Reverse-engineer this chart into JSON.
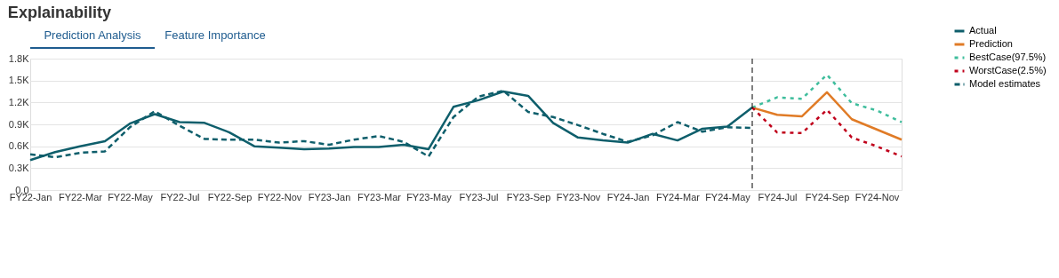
{
  "chart_data": {
    "type": "line",
    "title": "Explainability",
    "annotations": [
      "Prediction Analysis",
      "Feature Importance"
    ],
    "categories": [
      "FY22-Jan",
      null,
      "FY22-Mar",
      null,
      "FY22-May",
      null,
      "FY22-Jul",
      null,
      "FY22-Sep",
      null,
      "FY22-Nov",
      null,
      "FY23-Jan",
      null,
      "FY23-Mar",
      null,
      "FY23-May",
      null,
      "FY23-Jul",
      null,
      "FY23-Sep",
      null,
      "FY23-Nov",
      null,
      "FY24-Jan",
      null,
      "FY24-Mar",
      null,
      "FY24-May",
      null,
      "FY24-Jul",
      null,
      "FY24-Sep",
      null,
      "FY24-Nov",
      null
    ],
    "series": [
      {
        "name": "Actual",
        "color": "#0e5e6b",
        "line_style": "solid",
        "values": [
          410,
          520,
          600,
          670,
          910,
          1040,
          930,
          920,
          790,
          600,
          580,
          560,
          570,
          590,
          590,
          620,
          560,
          1140,
          1230,
          1350,
          1290,
          920,
          720,
          680,
          650,
          770,
          680,
          840,
          870,
          1130,
          null,
          null,
          null,
          null,
          null,
          null
        ]
      },
      {
        "name": "Prediction",
        "color": "#e07b26",
        "line_style": "solid",
        "values": [
          null,
          null,
          null,
          null,
          null,
          null,
          null,
          null,
          null,
          null,
          null,
          null,
          null,
          null,
          null,
          null,
          null,
          null,
          null,
          null,
          null,
          null,
          null,
          null,
          null,
          null,
          null,
          null,
          null,
          1130,
          1030,
          1010,
          1340,
          970,
          830,
          690
        ]
      },
      {
        "name": "BestCase(97.5%)",
        "color": "#3ebd9c",
        "line_style": "dotted",
        "values": [
          null,
          null,
          null,
          null,
          null,
          null,
          null,
          null,
          null,
          null,
          null,
          null,
          null,
          null,
          null,
          null,
          null,
          null,
          null,
          null,
          null,
          null,
          null,
          null,
          null,
          null,
          null,
          null,
          null,
          1130,
          1270,
          1250,
          1580,
          1190,
          1090,
          930
        ]
      },
      {
        "name": "WorstCase(2.5%)",
        "color": "#c0001b",
        "line_style": "dotted",
        "values": [
          null,
          null,
          null,
          null,
          null,
          null,
          null,
          null,
          null,
          null,
          null,
          null,
          null,
          null,
          null,
          null,
          null,
          null,
          null,
          null,
          null,
          null,
          null,
          null,
          null,
          null,
          null,
          null,
          null,
          1130,
          790,
          780,
          1100,
          720,
          600,
          460
        ]
      },
      {
        "name": "Model estimates",
        "color": "#0e5e6b",
        "line_style": "dashed",
        "values": [
          490,
          450,
          510,
          530,
          860,
          1080,
          880,
          700,
          690,
          690,
          650,
          670,
          620,
          690,
          740,
          660,
          460,
          1000,
          1280,
          1360,
          1070,
          1000,
          890,
          770,
          660,
          750,
          930,
          800,
          860,
          850,
          null,
          null,
          null,
          null,
          null,
          null
        ]
      }
    ],
    "ylim": [
      0,
      1800
    ],
    "yticks": [
      {
        "value": 0,
        "label": "0.0"
      },
      {
        "value": 300,
        "label": "0.3K"
      },
      {
        "value": 600,
        "label": "0.6K"
      },
      {
        "value": 900,
        "label": "0.9K"
      },
      {
        "value": 1200,
        "label": "1.2K"
      },
      {
        "value": 1500,
        "label": "1.5K"
      },
      {
        "value": 1800,
        "label": "1.8K"
      }
    ],
    "ref_lines": [
      {
        "axis": "x",
        "color": "#000000",
        "line_style": "dashed"
      }
    ],
    "grid": "y",
    "legend": "right",
    "marker": "none"
  }
}
